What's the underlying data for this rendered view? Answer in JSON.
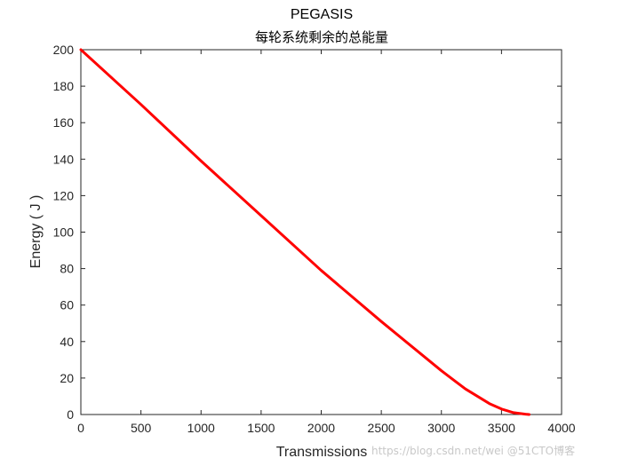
{
  "chart_data": {
    "type": "line",
    "title": "PEGASIS",
    "subtitle": "每轮系统剩余的总能量",
    "xlabel": "Transmissions",
    "ylabel": "Energy ( J )",
    "xlim": [
      0,
      4000
    ],
    "ylim": [
      0,
      200
    ],
    "xticks": [
      0,
      500,
      1000,
      1500,
      2000,
      2500,
      3000,
      3500,
      4000
    ],
    "yticks": [
      0,
      20,
      40,
      60,
      80,
      100,
      120,
      140,
      160,
      180,
      200
    ],
    "grid": false,
    "series": [
      {
        "color": "#ff0000",
        "x": [
          0,
          500,
          1000,
          1500,
          2000,
          2500,
          3000,
          3200,
          3400,
          3500,
          3600,
          3700,
          3730
        ],
        "y": [
          200,
          170,
          139,
          109,
          79,
          51,
          24,
          14,
          6,
          3,
          1,
          0.2,
          0
        ]
      }
    ]
  },
  "watermark": "https://blog.csdn.net/wei  @51CTO博客"
}
